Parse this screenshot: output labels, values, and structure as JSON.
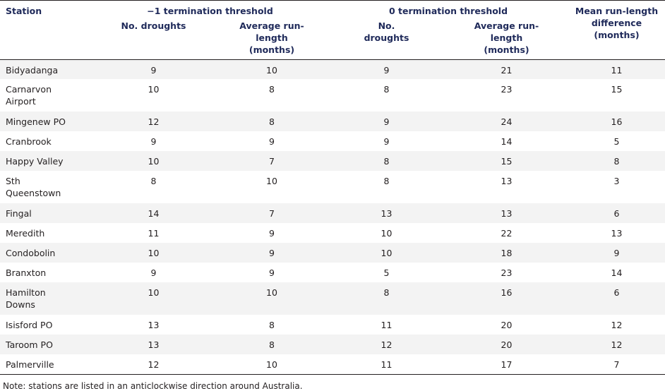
{
  "header": {
    "station": "Station",
    "group_minus1": "−1 termination threshold",
    "group_zero": "0 termination threshold",
    "mean_diff": "Mean run-length difference (months)",
    "no_droughts": "No. droughts",
    "avg_run_length": "Average run-length (months)"
  },
  "rows": [
    {
      "station": "Bidyadanga",
      "m1_no": "9",
      "m1_avg": "10",
      "z_no": "9",
      "z_avg": "21",
      "diff": "11"
    },
    {
      "station": "Carnarvon Airport",
      "m1_no": "10",
      "m1_avg": "8",
      "z_no": "8",
      "z_avg": "23",
      "diff": "15"
    },
    {
      "station": "Mingenew PO",
      "m1_no": "12",
      "m1_avg": "8",
      "z_no": "9",
      "z_avg": "24",
      "diff": "16"
    },
    {
      "station": "Cranbrook",
      "m1_no": "9",
      "m1_avg": "9",
      "z_no": "9",
      "z_avg": "14",
      "diff": "5"
    },
    {
      "station": "Happy Valley",
      "m1_no": "10",
      "m1_avg": "7",
      "z_no": "8",
      "z_avg": "15",
      "diff": "8"
    },
    {
      "station": "Sth Queenstown",
      "m1_no": "8",
      "m1_avg": "10",
      "z_no": "8",
      "z_avg": "13",
      "diff": "3"
    },
    {
      "station": "Fingal",
      "m1_no": "14",
      "m1_avg": "7",
      "z_no": "13",
      "z_avg": "13",
      "diff": "6"
    },
    {
      "station": "Meredith",
      "m1_no": "11",
      "m1_avg": "9",
      "z_no": "10",
      "z_avg": "22",
      "diff": "13"
    },
    {
      "station": "Condobolin",
      "m1_no": "10",
      "m1_avg": "9",
      "z_no": "10",
      "z_avg": "18",
      "diff": "9"
    },
    {
      "station": "Branxton",
      "m1_no": "9",
      "m1_avg": "9",
      "z_no": "5",
      "z_avg": "23",
      "diff": "14"
    },
    {
      "station": "Hamilton Downs",
      "m1_no": "10",
      "m1_avg": "10",
      "z_no": "8",
      "z_avg": "16",
      "diff": "6"
    },
    {
      "station": "Isisford PO",
      "m1_no": "13",
      "m1_avg": "8",
      "z_no": "11",
      "z_avg": "20",
      "diff": "12"
    },
    {
      "station": "Taroom PO",
      "m1_no": "13",
      "m1_avg": "8",
      "z_no": "12",
      "z_avg": "20",
      "diff": "12"
    },
    {
      "station": "Palmerville",
      "m1_no": "12",
      "m1_avg": "10",
      "z_no": "11",
      "z_avg": "17",
      "diff": "7"
    }
  ],
  "note": "Note: stations are listed in an anticlockwise direction around Australia."
}
